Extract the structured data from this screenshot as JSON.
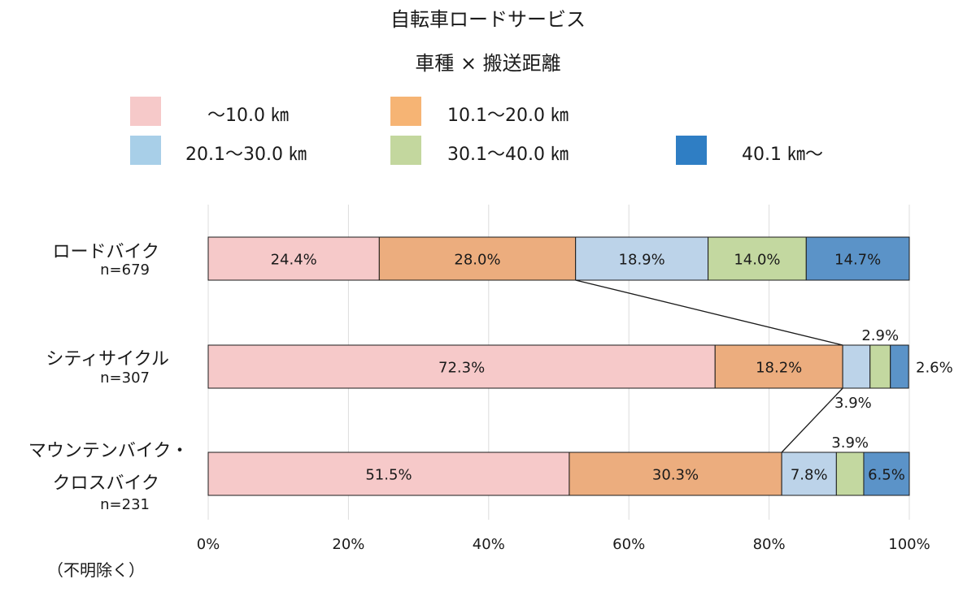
{
  "chart_data": {
    "type": "bar",
    "orientation": "horizontal",
    "stacked": "percent",
    "title": "自転車ロードサービス",
    "subtitle": "車種 × 搬送距離",
    "categories": [
      "ロードバイク",
      "シティサイクル",
      "マウンテンバイク・クロスバイク"
    ],
    "category_lines": [
      [
        "ロードバイク"
      ],
      [
        "シティサイクル"
      ],
      [
        "マウンテンバイク・",
        "クロスバイク"
      ]
    ],
    "sample_sizes": [
      "n=679",
      "n=307",
      "n=231"
    ],
    "series": [
      {
        "name": "～10.0 ㎞",
        "color": "#f6c9c9",
        "values": [
          24.4,
          72.3,
          51.5
        ],
        "labels": [
          "24.4%",
          "72.3%",
          "51.5%"
        ]
      },
      {
        "name": "10.1～20.0 ㎞",
        "color": "#ecad7e",
        "values": [
          28.0,
          18.2,
          30.3
        ],
        "labels": [
          "28.0%",
          "18.2%",
          "30.3%"
        ]
      },
      {
        "name": "20.1～30.0 ㎞",
        "color": "#bcd3e9",
        "values": [
          18.9,
          3.9,
          7.8
        ],
        "labels": [
          "18.9%",
          "3.9%",
          "7.8%"
        ]
      },
      {
        "name": "30.1～40.0 ㎞",
        "color": "#c3d8a0",
        "values": [
          14.0,
          2.9,
          3.9
        ],
        "labels": [
          "14.0%",
          "2.9%",
          "3.9%"
        ]
      },
      {
        "name": "40.1 ㎞～",
        "color": "#5b93c8",
        "values": [
          14.7,
          2.6,
          6.5
        ],
        "labels": [
          "14.7%",
          "2.6%",
          "6.5%"
        ]
      }
    ],
    "legend_colors": [
      "#f6c9c9",
      "#f6b474",
      "#a8cfe8",
      "#c3d79e",
      "#2f7ec4"
    ],
    "x_ticks": [
      "0%",
      "20%",
      "40%",
      "60%",
      "80%",
      "100%"
    ],
    "xlim": [
      0,
      100
    ],
    "grid": "vertical",
    "legend_position": "top",
    "connector_lines": "between cumulative ～20.0 ㎞ boundaries"
  },
  "footnote": "（不明除く）"
}
